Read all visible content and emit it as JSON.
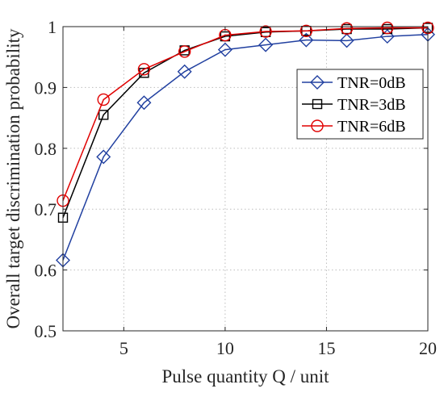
{
  "chart_data": {
    "type": "line",
    "title": "",
    "xlabel": "Pulse quantity Q / unit",
    "ylabel": "Overall target discrimination probability",
    "xlim": [
      2,
      20
    ],
    "ylim": [
      0.5,
      1
    ],
    "xticks": [
      5,
      10,
      15,
      20
    ],
    "yticks": [
      0.5,
      0.6,
      0.7,
      0.8,
      0.9,
      1
    ],
    "xtick_labels": [
      "5",
      "10",
      "15",
      "20"
    ],
    "ytick_labels": [
      "0.5",
      "0.6",
      "0.7",
      "0.8",
      "0.9",
      "1"
    ],
    "grid": true,
    "legend_position": "upper-right",
    "x": [
      2,
      4,
      6,
      8,
      10,
      12,
      14,
      16,
      18,
      20
    ],
    "series": [
      {
        "name": "TNR=0dB",
        "color": "#2140a0",
        "marker": "diamond",
        "values": [
          0.616,
          0.786,
          0.875,
          0.926,
          0.962,
          0.97,
          0.978,
          0.977,
          0.984,
          0.987
        ]
      },
      {
        "name": "TNR=3dB",
        "color": "#000000",
        "marker": "square",
        "values": [
          0.686,
          0.855,
          0.924,
          0.961,
          0.984,
          0.991,
          0.993,
          0.996,
          0.996,
          0.998
        ]
      },
      {
        "name": "TNR=6dB",
        "color": "#e00000",
        "marker": "circle",
        "values": [
          0.714,
          0.88,
          0.93,
          0.959,
          0.986,
          0.992,
          0.993,
          0.997,
          0.998,
          0.998
        ]
      }
    ]
  }
}
